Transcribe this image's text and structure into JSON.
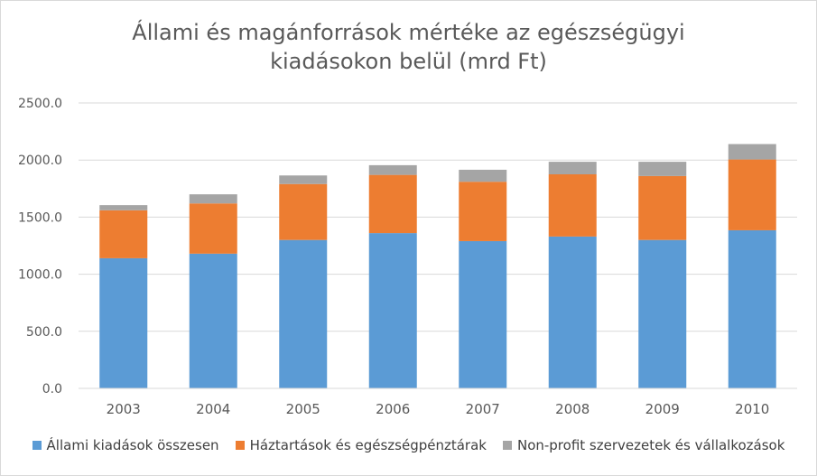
{
  "chart_data": {
    "type": "bar",
    "stacked": true,
    "title": "Állami és magánforrások mértéke az egészségügyi kiadásokon belül (mrd Ft)",
    "title_lines": [
      "Állami és magánforrások mértéke az egészségügyi",
      "kiadásokon belül (mrd Ft)"
    ],
    "categories": [
      "2003",
      "2004",
      "2005",
      "2006",
      "2007",
      "2008",
      "2009",
      "2010"
    ],
    "series": [
      {
        "name": "Állami kiadások összesen",
        "color": "#5b9bd5",
        "values": [
          1140,
          1180,
          1300,
          1360,
          1290,
          1330,
          1300,
          1385
        ]
      },
      {
        "name": "Háztartások és egészségpénztárak",
        "color": "#ed7d31",
        "values": [
          420,
          440,
          490,
          510,
          520,
          545,
          560,
          620
        ]
      },
      {
        "name": "Non-profit szervezetek és vállalkozások",
        "color": "#a5a5a5",
        "values": [
          45,
          80,
          75,
          85,
          105,
          110,
          125,
          135
        ]
      }
    ],
    "ylim": [
      0,
      2500
    ],
    "yticks": [
      "0.0",
      "500.0",
      "1000.0",
      "1500.0",
      "2000.0",
      "2500.0"
    ],
    "grid": true,
    "legend_position": "bottom"
  }
}
